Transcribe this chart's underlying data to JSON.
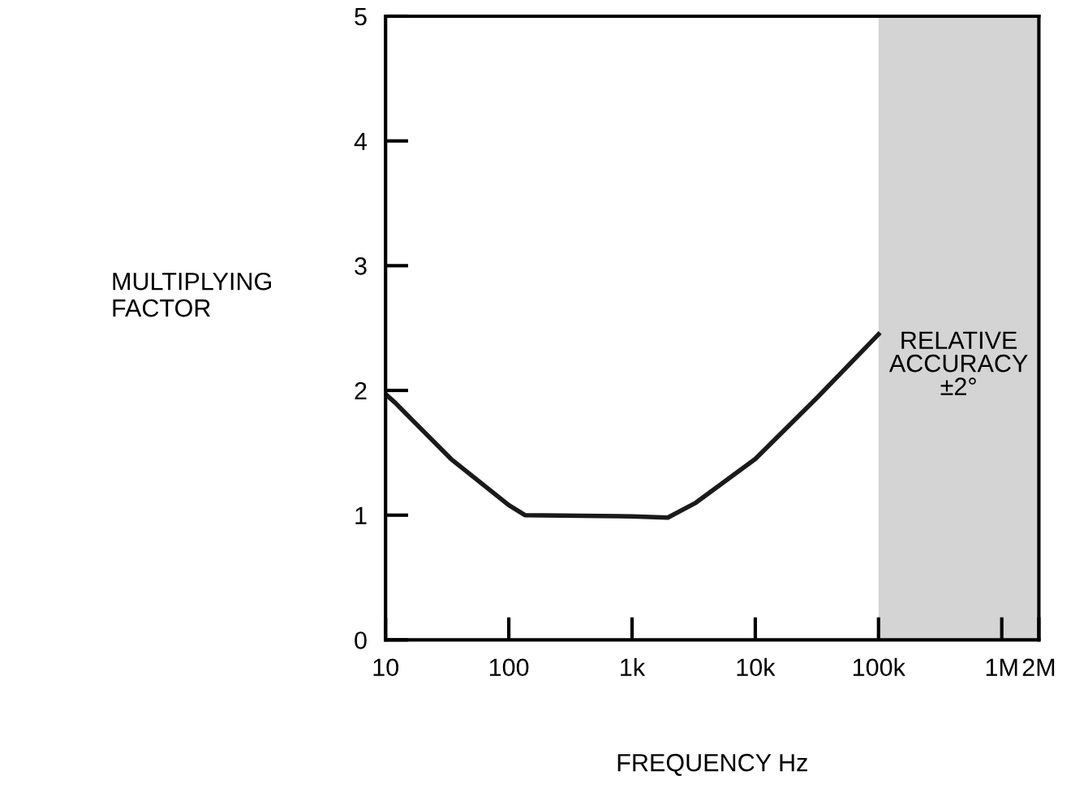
{
  "chart_data": {
    "type": "line",
    "xlabel": "FREQUENCY Hz",
    "ylabel": "MULTIPLYING\nFACTOR",
    "log": "x",
    "x": [
      10,
      12,
      34,
      100,
      135,
      1000,
      1950,
      3300,
      10000,
      31600,
      100000
    ],
    "series": [
      {
        "color": "#1a1a1a",
        "values": [
          1.97,
          1.9,
          1.45,
          1.08,
          1.0,
          0.99,
          0.98,
          1.1,
          1.45,
          1.94,
          2.45
        ]
      }
    ],
    "xlim": [
      10,
      2000000
    ],
    "xticks": [
      {
        "value": 10,
        "label": "10"
      },
      {
        "value": 100,
        "label": "100"
      },
      {
        "value": 1000,
        "label": "1k"
      },
      {
        "value": 10000,
        "label": "10k"
      },
      {
        "value": 100000,
        "label": "100k"
      },
      {
        "value": 1000000,
        "label": "1M"
      },
      {
        "value": 2000000,
        "label": "2M"
      }
    ],
    "ylim": [
      0,
      5
    ],
    "yticks": [
      0,
      1,
      2,
      3,
      4,
      5
    ],
    "bands": [
      {
        "axis": "x",
        "from": 100000,
        "to": 2000000,
        "label": "RELATIVE\nACCURACY\n±2°",
        "color": "#d4d4d4"
      }
    ],
    "grid": false,
    "legend": false,
    "marker": "none",
    "line_style": "solid"
  }
}
